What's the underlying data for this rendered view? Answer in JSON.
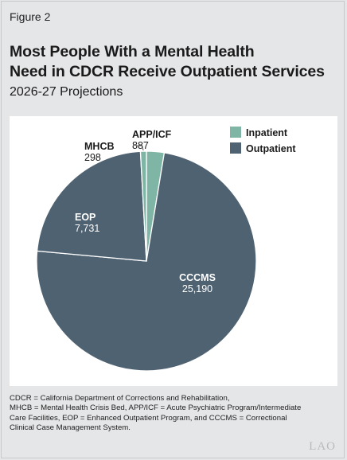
{
  "figure_label": "Figure 2",
  "title_line1": "Most People With a Mental Health",
  "title_line2": "Need in CDCR Receive Outpatient Services",
  "subtitle": "2026-27 Projections",
  "footnote": {
    "line1": "CDCR = California Department of Corrections and Rehabilitation,",
    "line2": "MHCB = Mental Health Crisis Bed, APP/ICF = Acute Psychiatric Program/Intermediate",
    "line3": "Care Facilities, EOP =  Enhanced Outpatient Program, and CCCMS = Correctional",
    "line4": "Clinical Case Management System."
  },
  "logo_text": "LAO",
  "chart_data": {
    "type": "pie",
    "legend_placement": "top-right",
    "legend": [
      {
        "name": "Inpatient",
        "color": "#7fb5a5"
      },
      {
        "name": "Outpatient",
        "color": "#4f6272"
      }
    ],
    "slices": [
      {
        "label": "APP/ICF",
        "value": 887,
        "value_label": "887",
        "group": "Inpatient",
        "color": "#7fb5a5"
      },
      {
        "label": "CCCMS",
        "value": 25190,
        "value_label": "25,190",
        "group": "Outpatient",
        "color": "#4f6272"
      },
      {
        "label": "EOP",
        "value": 7731,
        "value_label": "7,731",
        "group": "Outpatient",
        "color": "#4f6272"
      },
      {
        "label": "MHCB",
        "value": 298,
        "value_label": "298",
        "group": "Inpatient",
        "color": "#7fb5a5"
      }
    ]
  }
}
